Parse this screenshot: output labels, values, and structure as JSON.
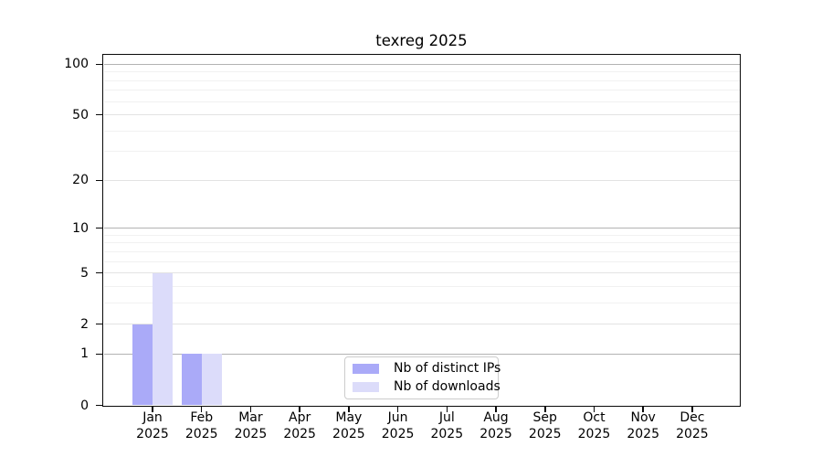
{
  "chart_data": {
    "type": "bar",
    "title": "texreg 2025",
    "categories": [
      "Jan 2025",
      "Feb 2025",
      "Mar 2025",
      "Apr 2025",
      "May 2025",
      "Jun 2025",
      "Jul 2025",
      "Aug 2025",
      "Sep 2025",
      "Oct 2025",
      "Nov 2025",
      "Dec 2025"
    ],
    "series": [
      {
        "name": "Nb of distinct IPs",
        "color": "#aaaaf8",
        "values": [
          2,
          1,
          0,
          0,
          0,
          0,
          0,
          0,
          0,
          0,
          0,
          0
        ]
      },
      {
        "name": "Nb of downloads",
        "color": "#dcdcfa",
        "values": [
          5,
          1,
          0,
          0,
          0,
          0,
          0,
          0,
          0,
          0,
          0,
          0
        ]
      }
    ],
    "xlabel": "",
    "ylabel": "",
    "y_scale": "log1p",
    "ylim": [
      0,
      113
    ],
    "y_ticks": [
      0,
      1,
      2,
      5,
      10,
      20,
      50,
      100
    ],
    "gridlines": {
      "major": [
        1,
        10,
        100
      ],
      "mid": [
        2,
        5,
        20,
        50
      ],
      "minor": [
        3,
        4,
        6,
        7,
        8,
        9,
        30,
        40,
        60,
        70,
        80,
        90
      ]
    },
    "grid_colors": {
      "major": "#b3b3b3",
      "mid": "#e3e3e3",
      "minor": "#f1f1f1"
    },
    "grid": true,
    "legend": {
      "position": "inside-bottom-center"
    }
  }
}
